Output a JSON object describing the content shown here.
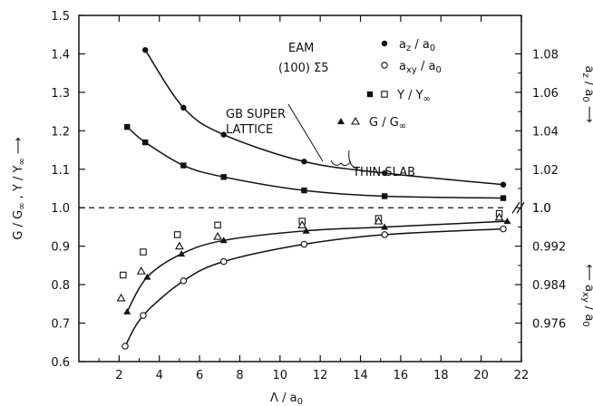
{
  "chart_data": {
    "type": "scatter",
    "annotations": {
      "potential": "EAM",
      "boundary": "(100) Σ5",
      "super_lattice": "GB SUPER\nLATTICE",
      "thin_slab": "THIN SLAB"
    },
    "legend": [
      {
        "marker": "filled-circle",
        "label": "a_z/a_0"
      },
      {
        "marker": "open-circle",
        "label": "a_xy/a_0"
      },
      {
        "marker": "filled-square",
        "label": "Y/Y_∞"
      },
      {
        "marker": "open-square",
        "label": "Y/Y_∞"
      },
      {
        "marker": "filled-triangle",
        "label": "G/G_∞"
      },
      {
        "marker": "open-triangle",
        "label": "G/G_∞"
      }
    ],
    "x_axis": {
      "label": "Λ/a_0",
      "range": [
        0,
        22
      ],
      "ticks": [
        "2",
        "4",
        "6",
        "8",
        "10",
        "12",
        "14",
        "16",
        "18",
        "20",
        "22"
      ]
    },
    "y_left": {
      "label": "G/G_∞ , Y/Y_∞",
      "range": [
        0.6,
        1.5
      ],
      "ticks": [
        "0.6",
        "0.7",
        "0.8",
        "0.9",
        "1.0",
        "1.1",
        "1.2",
        "1.3",
        "1.4",
        "1.5"
      ]
    },
    "y_right_upper": {
      "label": "a_z/a_0",
      "ticks": [
        "1.0",
        "1.02",
        "1.04",
        "1.06",
        "1.08"
      ]
    },
    "y_right_lower": {
      "label": "a_xy/a_0",
      "ticks": [
        "0.976",
        "0.984",
        "0.992"
      ]
    },
    "reference_line": 1.0,
    "series": [
      {
        "name": "a_z/a_0",
        "marker": "filled-circle",
        "x": [
          3.3,
          5.2,
          7.2,
          11.2,
          15.2,
          21.1
        ],
        "y": [
          1.41,
          1.26,
          1.19,
          1.12,
          1.09,
          1.06
        ]
      },
      {
        "name": "a_xy/a_0",
        "marker": "open-circle",
        "x": [
          2.3,
          3.2,
          5.2,
          7.2,
          11.2,
          15.2,
          21.1
        ],
        "y": [
          0.64,
          0.72,
          0.81,
          0.86,
          0.905,
          0.93,
          0.945
        ]
      },
      {
        "name": "Y/Y_∞ (GB super lattice)",
        "marker": "filled-square",
        "x": [
          2.4,
          3.3,
          5.2,
          7.2,
          11.2,
          15.2,
          21.1
        ],
        "y": [
          1.21,
          1.17,
          1.11,
          1.08,
          1.045,
          1.03,
          1.025
        ]
      },
      {
        "name": "Y/Y_∞ (thin slab)",
        "marker": "open-square",
        "x": [
          2.2,
          3.2,
          4.9,
          6.9,
          11.1,
          14.9,
          20.9
        ],
        "y": [
          0.825,
          0.885,
          0.93,
          0.955,
          0.965,
          0.972,
          0.985
        ]
      },
      {
        "name": "G/G_∞ (GB super lattice)",
        "marker": "filled-triangle",
        "x": [
          2.4,
          3.4,
          5.1,
          7.2,
          11.3,
          15.2,
          21.3
        ],
        "y": [
          0.73,
          0.82,
          0.88,
          0.915,
          0.94,
          0.95,
          0.965
        ]
      },
      {
        "name": "G/G_∞ (thin slab)",
        "marker": "open-triangle",
        "x": [
          2.1,
          3.1,
          5.0,
          6.9,
          11.1,
          14.9,
          20.9
        ],
        "y": [
          0.765,
          0.835,
          0.9,
          0.925,
          0.955,
          0.965,
          0.975
        ]
      }
    ]
  }
}
